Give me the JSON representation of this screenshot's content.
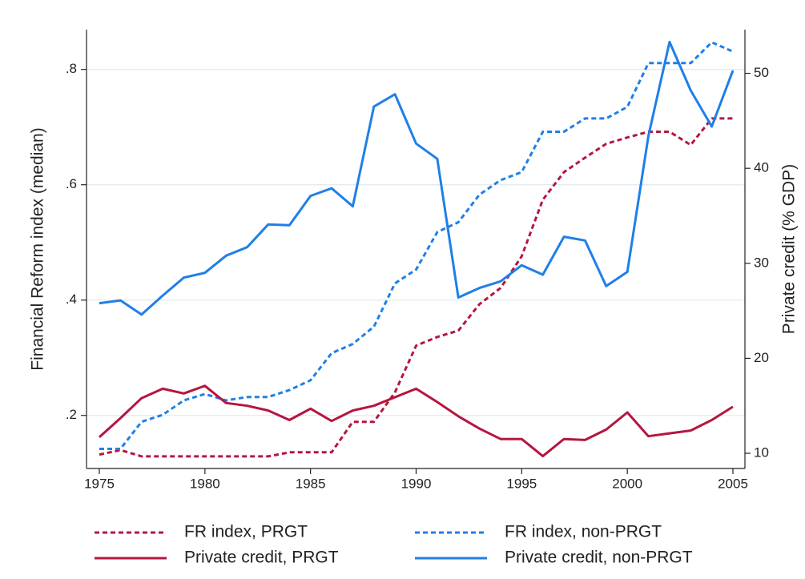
{
  "chart_data": {
    "type": "line",
    "y_label": "Financial Reform index (median)",
    "y2_label": "Private credit (% GDP)",
    "x": [
      1975,
      1976,
      1977,
      1978,
      1979,
      1980,
      1981,
      1982,
      1983,
      1984,
      1985,
      1986,
      1987,
      1988,
      1989,
      1990,
      1991,
      1992,
      1993,
      1994,
      1995,
      1996,
      1997,
      1998,
      1999,
      2000,
      2001,
      2002,
      2003,
      2004,
      2005
    ],
    "xlim": [
      1975,
      2005
    ],
    "xticks": [
      1975,
      1980,
      1985,
      1990,
      1995,
      2000,
      2005
    ],
    "ylim": [
      0.108,
      0.869
    ],
    "yticks": [
      {
        "value": 0.2,
        "label": ".2"
      },
      {
        "value": 0.4,
        "label": ".4"
      },
      {
        "value": 0.6,
        "label": ".6"
      },
      {
        "value": 0.8,
        "label": ".8"
      }
    ],
    "y2lim": [
      8.4,
      54.6
    ],
    "y2ticks": [
      10,
      20,
      30,
      40,
      50
    ],
    "grid": true,
    "legend_position": "bottom",
    "series": [
      {
        "name": "FR index, PRGT",
        "color": "#b5163f",
        "linestyle": "dashed",
        "axis": "y",
        "values": [
          0.132,
          0.14,
          0.129,
          0.129,
          0.129,
          0.129,
          0.129,
          0.129,
          0.129,
          0.136,
          0.136,
          0.136,
          0.189,
          0.189,
          0.24,
          0.321,
          0.336,
          0.347,
          0.393,
          0.421,
          0.476,
          0.574,
          0.622,
          0.647,
          0.671,
          0.682,
          0.692,
          0.692,
          0.669,
          0.715,
          0.715
        ]
      },
      {
        "name": "FR index, non-PRGT",
        "color": "#1f7fe8",
        "linestyle": "dashed",
        "axis": "y",
        "values": [
          0.142,
          0.142,
          0.189,
          0.201,
          0.226,
          0.237,
          0.226,
          0.232,
          0.232,
          0.244,
          0.261,
          0.308,
          0.324,
          0.354,
          0.429,
          0.453,
          0.518,
          0.535,
          0.583,
          0.608,
          0.622,
          0.692,
          0.692,
          0.715,
          0.715,
          0.735,
          0.811,
          0.811,
          0.811,
          0.847,
          0.831
        ]
      },
      {
        "name": "Private credit, PRGT",
        "color": "#b5163f",
        "linestyle": "solid",
        "axis": "y2",
        "values": [
          11.7,
          13.7,
          15.8,
          16.8,
          16.3,
          17.1,
          15.3,
          15.0,
          14.5,
          13.5,
          14.7,
          13.4,
          14.5,
          15.0,
          15.9,
          16.8,
          15.4,
          13.9,
          12.6,
          11.5,
          11.5,
          9.7,
          11.5,
          11.4,
          12.5,
          14.3,
          11.8,
          12.1,
          12.4,
          13.5,
          14.9
        ]
      },
      {
        "name": "Private credit, non-PRGT",
        "color": "#1f7fe8",
        "linestyle": "solid",
        "axis": "y2",
        "values": [
          25.8,
          26.1,
          24.6,
          26.6,
          28.5,
          29.0,
          30.8,
          31.7,
          34.1,
          34.0,
          37.1,
          37.9,
          36.0,
          46.5,
          47.8,
          42.6,
          41.0,
          26.4,
          27.4,
          28.1,
          29.8,
          28.8,
          32.8,
          32.4,
          27.6,
          29.1,
          43.4,
          53.3,
          48.2,
          44.4,
          50.3
        ]
      }
    ]
  }
}
